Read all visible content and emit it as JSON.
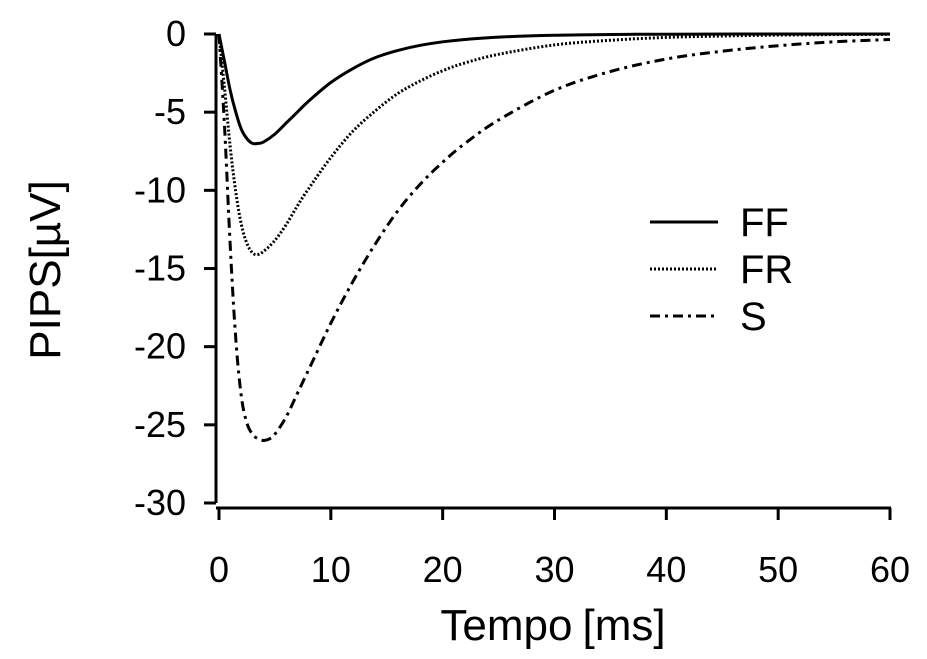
{
  "chart_data": {
    "type": "line",
    "xlabel": "Tempo",
    "xunit": "[ms]",
    "ylabel": "PIPS[µV]",
    "xlim": [
      0,
      60
    ],
    "ylim": [
      -30,
      0
    ],
    "xticks": [
      0,
      10,
      20,
      30,
      40,
      50,
      60
    ],
    "yticks": [
      0,
      -5,
      -10,
      -15,
      -20,
      -25,
      -30
    ],
    "xtick_labels": [
      "0",
      "10",
      "20",
      "30",
      "40",
      "50",
      "60"
    ],
    "ytick_labels": [
      "0",
      "-5",
      "-10",
      "-15",
      "-20",
      "-25",
      "-30"
    ],
    "grid": false,
    "legend_position": "right",
    "series": [
      {
        "name": "FF",
        "style": "solid",
        "x": [
          0,
          0.5,
          1,
          1.5,
          2,
          2.5,
          3,
          3.5,
          4,
          5,
          6,
          7,
          8,
          10,
          12,
          14,
          16,
          18,
          20,
          22,
          25,
          30,
          35,
          40,
          50,
          60
        ],
        "y": [
          0,
          -1.8,
          -3.6,
          -5.0,
          -6.1,
          -6.7,
          -7.0,
          -7.0,
          -6.9,
          -6.4,
          -5.7,
          -5.0,
          -4.3,
          -3.1,
          -2.2,
          -1.5,
          -1.05,
          -0.72,
          -0.5,
          -0.35,
          -0.2,
          -0.08,
          -0.03,
          -0.01,
          0,
          0
        ]
      },
      {
        "name": "FR",
        "style": "dotted",
        "x": [
          0,
          0.5,
          1,
          1.5,
          2,
          2.5,
          3,
          3.5,
          4,
          5,
          6,
          7,
          8,
          10,
          12,
          14,
          16,
          18,
          20,
          22,
          25,
          30,
          35,
          40,
          45,
          50,
          55,
          60
        ],
        "y": [
          0,
          -3.5,
          -7.2,
          -10.1,
          -12.2,
          -13.4,
          -14.0,
          -14.1,
          -13.9,
          -13.2,
          -12.2,
          -11.0,
          -9.9,
          -7.9,
          -6.2,
          -4.9,
          -3.8,
          -3.0,
          -2.35,
          -1.85,
          -1.3,
          -0.7,
          -0.4,
          -0.22,
          -0.13,
          -0.07,
          -0.04,
          -0.02
        ]
      },
      {
        "name": "S",
        "style": "dash-dot",
        "x": [
          0,
          0.5,
          1,
          1.5,
          2,
          2.5,
          3,
          3.5,
          4,
          4.5,
          5,
          6,
          7,
          8,
          10,
          12,
          14,
          16,
          18,
          20,
          22,
          25,
          30,
          35,
          40,
          45,
          50,
          55,
          60
        ],
        "y": [
          0,
          -6.0,
          -13.5,
          -19.5,
          -23.2,
          -24.9,
          -25.6,
          -25.9,
          -26.0,
          -25.9,
          -25.6,
          -24.5,
          -23.0,
          -21.5,
          -18.5,
          -15.8,
          -13.4,
          -11.3,
          -9.6,
          -8.2,
          -7.0,
          -5.5,
          -3.6,
          -2.4,
          -1.6,
          -1.1,
          -0.75,
          -0.5,
          -0.35
        ]
      }
    ]
  }
}
